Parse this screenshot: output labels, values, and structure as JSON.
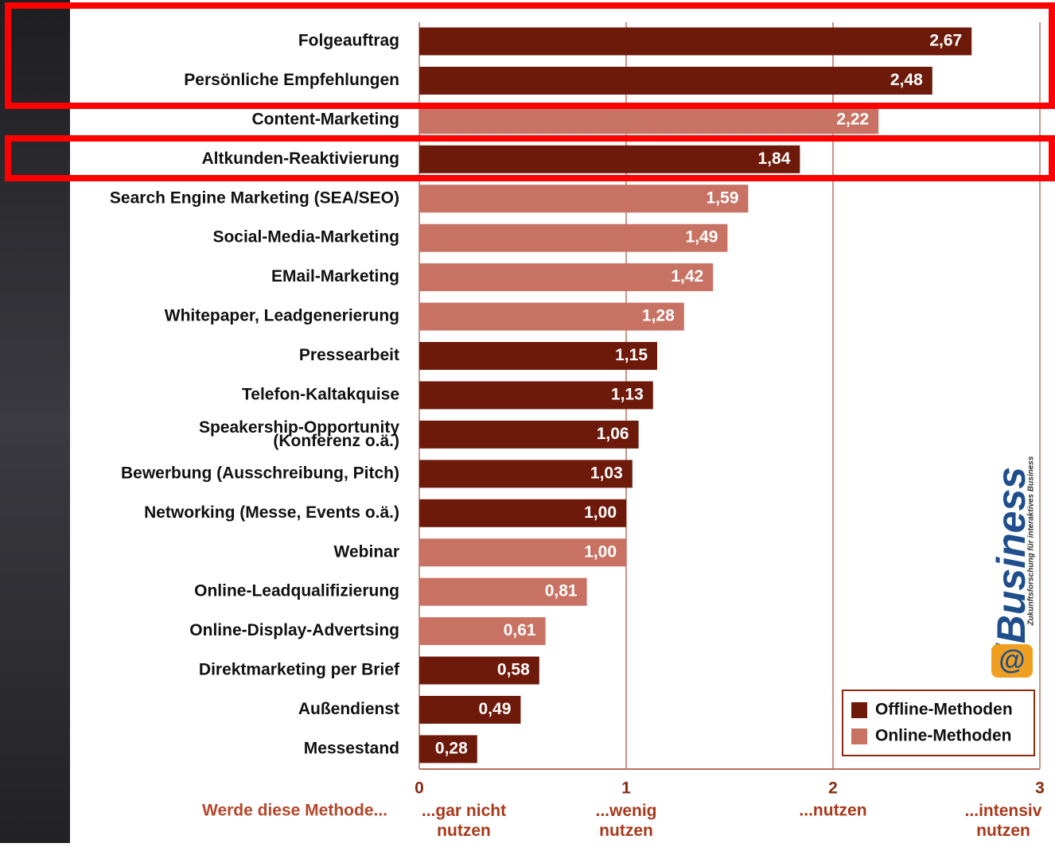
{
  "chart_data": {
    "type": "bar",
    "orientation": "horizontal",
    "categories": [
      "Folgeauftrag",
      "Persönliche Empfehlungen",
      "Content-Marketing",
      "Altkunden-Reaktivierung",
      "Search Engine Marketing (SEA/SEO)",
      "Social-Media-Marketing",
      "EMail-Marketing",
      "Whitepaper, Leadgenerierung",
      "Pressearbeit",
      "Telefon-Kaltakquise",
      "Speakership-Opportunity\n(Konferenz o.ä.)",
      "Bewerbung (Ausschreibung, Pitch)",
      "Networking (Messe, Events o.ä.)",
      "Webinar",
      "Online-Leadqualifizierung",
      "Online-Display-Advertsing",
      "Direktmarketing per Brief",
      "Außendienst",
      "Messestand"
    ],
    "series": [
      {
        "name": "Offline-Methoden",
        "color": "#6e1a0b",
        "values": [
          2.67,
          2.48,
          null,
          1.84,
          null,
          null,
          null,
          null,
          1.15,
          1.13,
          1.06,
          1.03,
          1.0,
          null,
          null,
          null,
          0.58,
          0.49,
          0.28
        ],
        "value_labels": [
          "2,67",
          "2,48",
          null,
          "1,84",
          null,
          null,
          null,
          null,
          "1,15",
          "1,13",
          "1,06",
          "1,03",
          "1,00",
          null,
          null,
          null,
          "0,58",
          "0,49",
          "0,28"
        ]
      },
      {
        "name": "Online-Methoden",
        "color": "#c87263",
        "values": [
          null,
          null,
          2.22,
          null,
          1.59,
          1.49,
          1.42,
          1.28,
          null,
          null,
          null,
          null,
          null,
          1.0,
          0.81,
          0.61,
          null,
          null,
          null
        ],
        "value_labels": [
          null,
          null,
          "2,22",
          null,
          "1,59",
          "1,49",
          "1,42",
          "1,28",
          null,
          null,
          null,
          null,
          null,
          "1,00",
          "0,81",
          "0,61",
          null,
          null,
          null
        ]
      }
    ],
    "xlim": [
      0,
      3
    ],
    "xticks": [
      0,
      1,
      2,
      3
    ],
    "grid": true,
    "legend": "lower right",
    "axis_label": "Werde diese Methode...",
    "tick_descriptions": [
      "...gar nicht\nnutzen",
      "...wenig\nnutzen",
      "...nutzen",
      "...intensiv\nnutzen"
    ],
    "logo": "iBusiness",
    "logo_subtitle": "Zukunftsforschung für interaktives Business"
  }
}
